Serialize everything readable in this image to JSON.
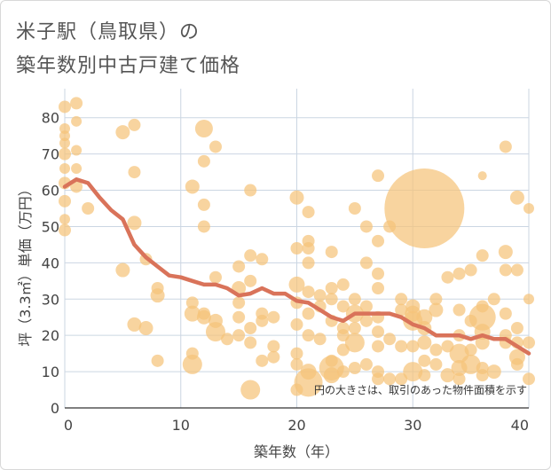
{
  "header": {
    "title_line1": "米子駅（鳥取県）の",
    "title_line2": "築年数別中古戸建て価格"
  },
  "chart_data": {
    "type": "scatter",
    "title": "米子駅（鳥取県）の 築年数別中古戸建て価格",
    "xlabel": "築年数（年）",
    "ylabel": "坪（3.3㎡）単価（万円）",
    "xlim": [
      0,
      40
    ],
    "ylim": [
      0,
      88
    ],
    "xticks": [
      0,
      10,
      20,
      30,
      40
    ],
    "yticks": [
      0,
      10,
      20,
      30,
      40,
      50,
      60,
      70,
      80
    ],
    "annotation": "円の大きさは、取引のあった物件面積を示す",
    "colors": {
      "bubble": "#f5c37a",
      "trend": "#d9735a",
      "grid": "#cbd6e2"
    },
    "points": [
      [
        0,
        83,
        7
      ],
      [
        0,
        77,
        6
      ],
      [
        0,
        75,
        6
      ],
      [
        0,
        73,
        6
      ],
      [
        0,
        70,
        7
      ],
      [
        0,
        66,
        6
      ],
      [
        0,
        62,
        7
      ],
      [
        0,
        57,
        7
      ],
      [
        0,
        52,
        6
      ],
      [
        0,
        49,
        7
      ],
      [
        1,
        84,
        7
      ],
      [
        1,
        79,
        6
      ],
      [
        1,
        71,
        6
      ],
      [
        1,
        66,
        6
      ],
      [
        1,
        61,
        7
      ],
      [
        2,
        55,
        7
      ],
      [
        5,
        76,
        8
      ],
      [
        6,
        78,
        7
      ],
      [
        6,
        65,
        7
      ],
      [
        6,
        51,
        8
      ],
      [
        7,
        41,
        7
      ],
      [
        5,
        38,
        8
      ],
      [
        6,
        23,
        8
      ],
      [
        7,
        22,
        8
      ],
      [
        8,
        33,
        7
      ],
      [
        8,
        31,
        8
      ],
      [
        8,
        13,
        7
      ],
      [
        11,
        61,
        8
      ],
      [
        12,
        68,
        7
      ],
      [
        12,
        77,
        10
      ],
      [
        13,
        72,
        7
      ],
      [
        12,
        56,
        7
      ],
      [
        12,
        50,
        7
      ],
      [
        13,
        36,
        7
      ],
      [
        11,
        29,
        7
      ],
      [
        11,
        26,
        9
      ],
      [
        12,
        26,
        7
      ],
      [
        12,
        25,
        8
      ],
      [
        13,
        24,
        8
      ],
      [
        13,
        21,
        11
      ],
      [
        14,
        19,
        7
      ],
      [
        11,
        15,
        7
      ],
      [
        11,
        12,
        11
      ],
      [
        16,
        60,
        7
      ],
      [
        15,
        39,
        7
      ],
      [
        16,
        42,
        7
      ],
      [
        17,
        41,
        7
      ],
      [
        16,
        35,
        7
      ],
      [
        15,
        33,
        8
      ],
      [
        15,
        29,
        7
      ],
      [
        15,
        25,
        7
      ],
      [
        16,
        22,
        7
      ],
      [
        17,
        26,
        7
      ],
      [
        17,
        24,
        7
      ],
      [
        18,
        25,
        7
      ],
      [
        15,
        20,
        7
      ],
      [
        16,
        18,
        7
      ],
      [
        17,
        13,
        7
      ],
      [
        18,
        17,
        7
      ],
      [
        18,
        14,
        7
      ],
      [
        16,
        5,
        11
      ],
      [
        20,
        58,
        8
      ],
      [
        21,
        54,
        7
      ],
      [
        21,
        46,
        7
      ],
      [
        21,
        44,
        7
      ],
      [
        20,
        44,
        7
      ],
      [
        21,
        40,
        7
      ],
      [
        20,
        34,
        9
      ],
      [
        21,
        32,
        7
      ],
      [
        20,
        29,
        7
      ],
      [
        21,
        26,
        7
      ],
      [
        20,
        23,
        7
      ],
      [
        21,
        20,
        7
      ],
      [
        22,
        19,
        7
      ],
      [
        20,
        15,
        7
      ],
      [
        20,
        12,
        7
      ],
      [
        21,
        10,
        9
      ],
      [
        21,
        7,
        16
      ],
      [
        20,
        5,
        7
      ],
      [
        23,
        43,
        7
      ],
      [
        23,
        33,
        7
      ],
      [
        24,
        34,
        7
      ],
      [
        23,
        30,
        7
      ],
      [
        24,
        28,
        7
      ],
      [
        22,
        31,
        7
      ],
      [
        22,
        28,
        7
      ],
      [
        24,
        22,
        7
      ],
      [
        23,
        24,
        7
      ],
      [
        24,
        20,
        7
      ],
      [
        25,
        18,
        11
      ],
      [
        24,
        16,
        7
      ],
      [
        23,
        13,
        7
      ],
      [
        24,
        10,
        7
      ],
      [
        23,
        9,
        9
      ],
      [
        23,
        11,
        14
      ],
      [
        25,
        11,
        7
      ],
      [
        25,
        55,
        7
      ],
      [
        26,
        50,
        7
      ],
      [
        27,
        64,
        7
      ],
      [
        27,
        46,
        7
      ],
      [
        26,
        40,
        7
      ],
      [
        27,
        37,
        7
      ],
      [
        27,
        33,
        7
      ],
      [
        25,
        30,
        7
      ],
      [
        26,
        28,
        7
      ],
      [
        25,
        26,
        10
      ],
      [
        27,
        25,
        7
      ],
      [
        26,
        24,
        7
      ],
      [
        25,
        22,
        7
      ],
      [
        27,
        21,
        7
      ],
      [
        28,
        19,
        7
      ],
      [
        27,
        17,
        7
      ],
      [
        27,
        10,
        7
      ],
      [
        28,
        8,
        7
      ],
      [
        29,
        8,
        7
      ],
      [
        27,
        8,
        7
      ],
      [
        26,
        12,
        7
      ],
      [
        28,
        50,
        7
      ],
      [
        31,
        55,
        45
      ],
      [
        30,
        28,
        8
      ],
      [
        30,
        26,
        9
      ],
      [
        30,
        24,
        11
      ],
      [
        29,
        30,
        7
      ],
      [
        29,
        27,
        7
      ],
      [
        30,
        17,
        7
      ],
      [
        31,
        25,
        9
      ],
      [
        31,
        18,
        8
      ],
      [
        32,
        30,
        7
      ],
      [
        32,
        27,
        8
      ],
      [
        31,
        22,
        8
      ],
      [
        30,
        10,
        11
      ],
      [
        31,
        13,
        7
      ],
      [
        32,
        12,
        7
      ],
      [
        31,
        9,
        7
      ],
      [
        32,
        16,
        7
      ],
      [
        29,
        17,
        7
      ],
      [
        33,
        36,
        7
      ],
      [
        34,
        37,
        7
      ],
      [
        35,
        38,
        7
      ],
      [
        34,
        27,
        7
      ],
      [
        35,
        24,
        7
      ],
      [
        34,
        20,
        7
      ],
      [
        33,
        17,
        7
      ],
      [
        34,
        15,
        11
      ],
      [
        35,
        12,
        11
      ],
      [
        34,
        11,
        9
      ],
      [
        33,
        9,
        8
      ],
      [
        34,
        8,
        7
      ],
      [
        36,
        64,
        5
      ],
      [
        36,
        42,
        7
      ],
      [
        36,
        28,
        7
      ],
      [
        36,
        25,
        15
      ],
      [
        36,
        21,
        9
      ],
      [
        36,
        18,
        8
      ],
      [
        35,
        16,
        7
      ],
      [
        36,
        11,
        7
      ],
      [
        36,
        9,
        7
      ],
      [
        37,
        10,
        8
      ],
      [
        38,
        72,
        7
      ],
      [
        38,
        43,
        8
      ],
      [
        38,
        38,
        7
      ],
      [
        38,
        26,
        7
      ],
      [
        38,
        20,
        7
      ],
      [
        38,
        18,
        7
      ],
      [
        39,
        58,
        8
      ],
      [
        39,
        38,
        7
      ],
      [
        39,
        22,
        7
      ],
      [
        39,
        18,
        7
      ],
      [
        39,
        14,
        9
      ],
      [
        39,
        12,
        7
      ],
      [
        40,
        55,
        6
      ],
      [
        40,
        30,
        6
      ],
      [
        40,
        18,
        7
      ],
      [
        40,
        8,
        7
      ],
      [
        37,
        30,
        7
      ]
    ],
    "trend": [
      [
        0,
        61
      ],
      [
        1,
        63
      ],
      [
        2,
        62
      ],
      [
        3,
        58
      ],
      [
        4,
        54.5
      ],
      [
        5,
        52
      ],
      [
        6,
        45
      ],
      [
        7,
        41.5
      ],
      [
        8,
        39
      ],
      [
        9,
        36.5
      ],
      [
        10,
        36
      ],
      [
        11,
        35
      ],
      [
        12,
        34
      ],
      [
        13,
        34
      ],
      [
        14,
        33
      ],
      [
        15,
        31
      ],
      [
        16,
        31.5
      ],
      [
        17,
        33
      ],
      [
        18,
        31.5
      ],
      [
        19,
        31.5
      ],
      [
        20,
        29.5
      ],
      [
        21,
        29
      ],
      [
        22,
        27
      ],
      [
        23,
        25
      ],
      [
        24,
        24
      ],
      [
        25,
        26
      ],
      [
        26,
        26
      ],
      [
        27,
        26
      ],
      [
        28,
        26
      ],
      [
        29,
        25
      ],
      [
        30,
        23
      ],
      [
        31,
        22
      ],
      [
        32,
        20
      ],
      [
        33,
        20
      ],
      [
        34,
        20
      ],
      [
        35,
        19
      ],
      [
        36,
        20
      ],
      [
        37,
        19
      ],
      [
        38,
        19
      ],
      [
        39,
        17
      ],
      [
        40,
        15
      ]
    ]
  }
}
